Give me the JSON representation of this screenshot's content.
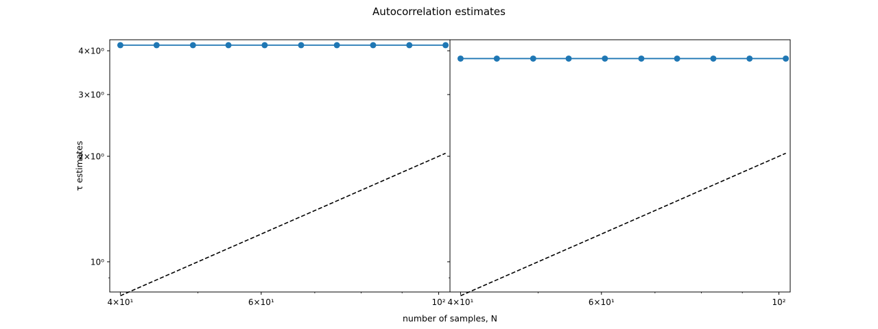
{
  "figure": {
    "title": "Autocorrelation estimates",
    "xlabel": "number of samples, N",
    "ylabel": "τ estimates"
  },
  "chart_data": [
    {
      "type": "line",
      "panel": "left",
      "x_scale": "log",
      "y_scale": "log",
      "xlim": [
        38.8,
        103.3
      ],
      "ylim": [
        0.82,
        4.3
      ],
      "grid": false,
      "x": [
        40,
        44.4,
        49.3,
        54.6,
        60.6,
        67.3,
        74.6,
        82.8,
        91.9,
        102
      ],
      "series": [
        {
          "values": [
            4.15,
            4.15,
            4.15,
            4.15,
            4.15,
            4.15,
            4.15,
            4.15,
            4.15,
            4.15
          ],
          "color": "#1f77b4",
          "style": "solid",
          "marker": "circle"
        },
        {
          "values": [
            0.8,
            0.888,
            0.986,
            1.092,
            1.212,
            1.346,
            1.492,
            1.656,
            1.838,
            2.04
          ],
          "color": "#000000",
          "style": "dashed",
          "marker": "none"
        }
      ],
      "x_ticks": [
        {
          "value": 40,
          "label": "4×10¹"
        },
        {
          "value": 60,
          "label": "6×10¹"
        },
        {
          "value": 100,
          "label": "10²"
        }
      ],
      "y_ticks": [
        {
          "value": 1,
          "label": "10⁰"
        },
        {
          "value": 2,
          "label": "2×10⁰"
        },
        {
          "value": 3,
          "label": "3×10⁰"
        },
        {
          "value": 4,
          "label": "4×10⁰"
        }
      ]
    },
    {
      "type": "line",
      "panel": "right",
      "x_scale": "log",
      "y_scale": "log",
      "xlim": [
        38.8,
        103.3
      ],
      "ylim": [
        0.82,
        4.3
      ],
      "grid": false,
      "x": [
        40,
        44.4,
        49.3,
        54.6,
        60.6,
        67.3,
        74.6,
        82.8,
        91.9,
        102
      ],
      "series": [
        {
          "values": [
            3.8,
            3.8,
            3.8,
            3.8,
            3.8,
            3.8,
            3.8,
            3.8,
            3.8,
            3.8
          ],
          "color": "#1f77b4",
          "style": "solid",
          "marker": "circle"
        },
        {
          "values": [
            0.8,
            0.888,
            0.986,
            1.092,
            1.212,
            1.346,
            1.492,
            1.656,
            1.838,
            2.04
          ],
          "color": "#000000",
          "style": "dashed",
          "marker": "none"
        }
      ],
      "x_ticks": [
        {
          "value": 40,
          "label": "4×10¹"
        },
        {
          "value": 60,
          "label": "6×10¹"
        },
        {
          "value": 100,
          "label": "10²"
        }
      ],
      "y_ticks": [
        {
          "value": 1,
          "label": ""
        },
        {
          "value": 2,
          "label": ""
        },
        {
          "value": 3,
          "label": ""
        },
        {
          "value": 4,
          "label": ""
        }
      ]
    }
  ]
}
